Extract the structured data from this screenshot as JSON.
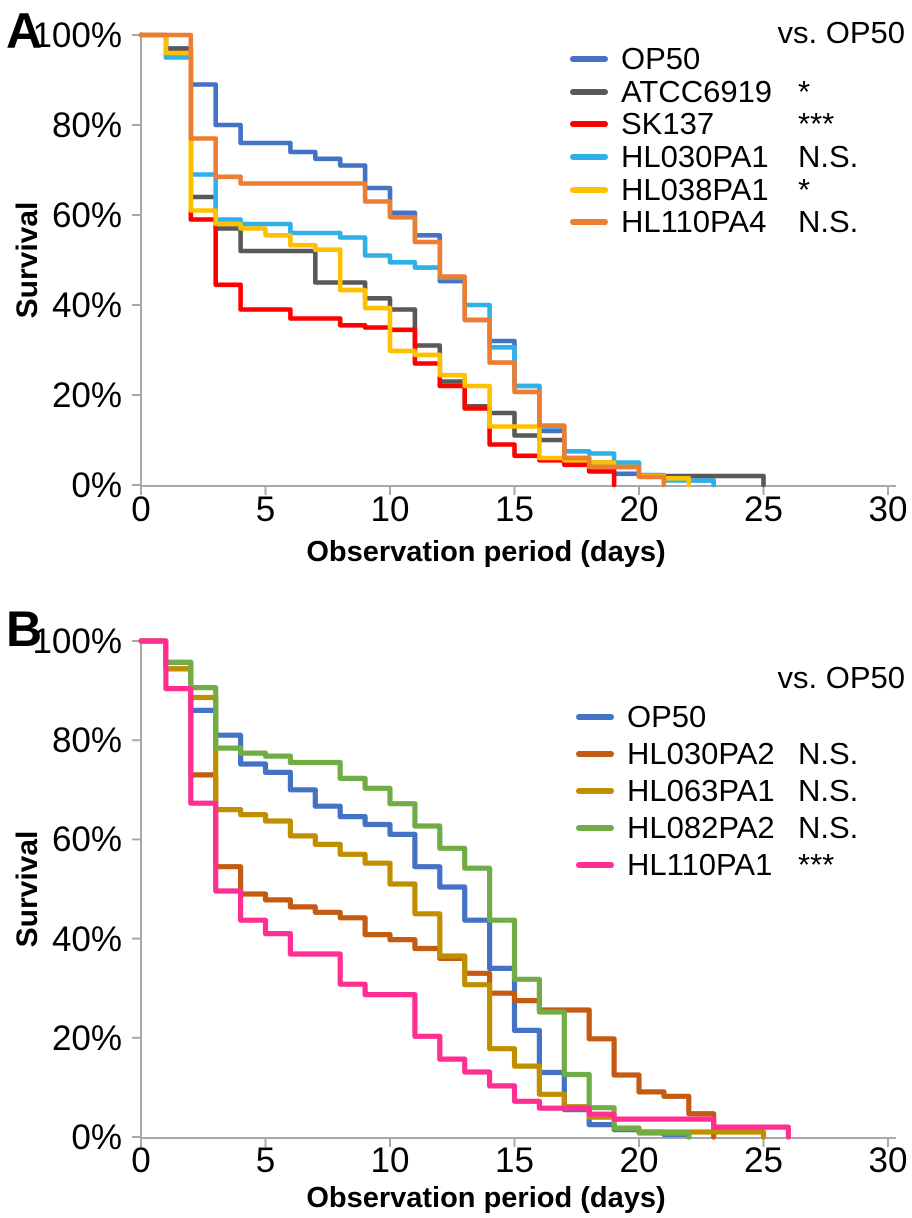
{
  "chart_data": [
    {
      "type": "line",
      "subtype": "kaplan-meier-step-survival",
      "panel_label": "A",
      "comparison_header": "vs. OP50",
      "xlabel": "Observation period (days)",
      "ylabel": "Survival",
      "x_ticks": [
        0,
        5,
        10,
        15,
        20,
        25,
        30
      ],
      "y_tick_labels": [
        "0%",
        "20%",
        "40%",
        "60%",
        "80%",
        "100%"
      ],
      "xlim": [
        0,
        30
      ],
      "ylim": [
        0,
        100
      ],
      "grid": "off",
      "legend_position": "upper-right",
      "axis_color": "#A8A8A8",
      "series": [
        {
          "name": "OP50",
          "color": "#4472C4",
          "significance": "",
          "points": [
            [
              0,
              100
            ],
            [
              1,
              97
            ],
            [
              2,
              89
            ],
            [
              3,
              80
            ],
            [
              4,
              76
            ],
            [
              6,
              74
            ],
            [
              7,
              72.5
            ],
            [
              8,
              71
            ],
            [
              9,
              66
            ],
            [
              10,
              60.5
            ],
            [
              11,
              55.5
            ],
            [
              12,
              45.3
            ],
            [
              13,
              36.7
            ],
            [
              14,
              32
            ],
            [
              15,
              22
            ],
            [
              16,
              12
            ],
            [
              17,
              5.5
            ],
            [
              18,
              4
            ],
            [
              19,
              2.5
            ],
            [
              20,
              2
            ],
            [
              21,
              1.5
            ],
            [
              22,
              1
            ],
            [
              23,
              0
            ]
          ]
        },
        {
          "name": "ATCC6919",
          "color": "#595959",
          "significance": "*",
          "points": [
            [
              0,
              100
            ],
            [
              1,
              97
            ],
            [
              2,
              64
            ],
            [
              3,
              57
            ],
            [
              4,
              52
            ],
            [
              7,
              45
            ],
            [
              9,
              41.5
            ],
            [
              10,
              39
            ],
            [
              11,
              31
            ],
            [
              12,
              23
            ],
            [
              13,
              17.5
            ],
            [
              14,
              16
            ],
            [
              15,
              11
            ],
            [
              16,
              10
            ],
            [
              17,
              6
            ],
            [
              18,
              5
            ],
            [
              19,
              4
            ],
            [
              20,
              2
            ],
            [
              25,
              0
            ]
          ]
        },
        {
          "name": "SK137",
          "color": "#FF0000",
          "significance": "***",
          "points": [
            [
              0,
              100
            ],
            [
              1,
              96
            ],
            [
              2,
              59
            ],
            [
              3,
              44.5
            ],
            [
              4,
              39
            ],
            [
              6,
              37
            ],
            [
              8,
              35.5
            ],
            [
              9,
              35
            ],
            [
              10,
              34.5
            ],
            [
              11,
              27
            ],
            [
              12,
              22
            ],
            [
              13,
              17
            ],
            [
              14,
              9
            ],
            [
              15,
              6.5
            ],
            [
              16,
              5.5
            ],
            [
              17,
              4.5
            ],
            [
              18,
              3
            ],
            [
              19,
              0
            ]
          ]
        },
        {
          "name": "HL030PA1",
          "color": "#2FB0E8",
          "significance": "N.S.",
          "points": [
            [
              0,
              100
            ],
            [
              1,
              95
            ],
            [
              2,
              69
            ],
            [
              3,
              59
            ],
            [
              4,
              58
            ],
            [
              6,
              56
            ],
            [
              8,
              55
            ],
            [
              9,
              51
            ],
            [
              10,
              49.5
            ],
            [
              11,
              48.3
            ],
            [
              12,
              46
            ],
            [
              13,
              40
            ],
            [
              14,
              30.6
            ],
            [
              15,
              22
            ],
            [
              16,
              13
            ],
            [
              17,
              7.5
            ],
            [
              18,
              7
            ],
            [
              19,
              5
            ],
            [
              20,
              2.2
            ],
            [
              21,
              1
            ],
            [
              23,
              0
            ]
          ]
        },
        {
          "name": "HL038PA1",
          "color": "#FFC000",
          "significance": "*",
          "points": [
            [
              0,
              100
            ],
            [
              1,
              96
            ],
            [
              2,
              61
            ],
            [
              3,
              58
            ],
            [
              4,
              57
            ],
            [
              5,
              55.5
            ],
            [
              6,
              53.3
            ],
            [
              7,
              52.3
            ],
            [
              8,
              43.3
            ],
            [
              9,
              39.3
            ],
            [
              10,
              29.8
            ],
            [
              11,
              28.9
            ],
            [
              12,
              24.4
            ],
            [
              13,
              22
            ],
            [
              14,
              13
            ],
            [
              16,
              6
            ],
            [
              17,
              5.5
            ],
            [
              18,
              5
            ],
            [
              19,
              4
            ],
            [
              20,
              2
            ],
            [
              21,
              1.5
            ],
            [
              22,
              0
            ]
          ]
        },
        {
          "name": "HL110PA4",
          "color": "#ED7D31",
          "significance": "N.S.",
          "points": [
            [
              0,
              100
            ],
            [
              2,
              77
            ],
            [
              3,
              68.5
            ],
            [
              4,
              67
            ],
            [
              9,
              63
            ],
            [
              10,
              59.5
            ],
            [
              11,
              54
            ],
            [
              12,
              46.3
            ],
            [
              13,
              36.7
            ],
            [
              14,
              27.2
            ],
            [
              15,
              20.7
            ],
            [
              16,
              13.2
            ],
            [
              17,
              6
            ],
            [
              18,
              4
            ],
            [
              20,
              1.8
            ],
            [
              21,
              0
            ]
          ]
        }
      ]
    },
    {
      "type": "line",
      "subtype": "kaplan-meier-step-survival",
      "panel_label": "B",
      "comparison_header": "vs. OP50",
      "xlabel": "Observation period (days)",
      "ylabel": "Survival",
      "x_ticks": [
        0,
        5,
        10,
        15,
        20,
        25,
        30
      ],
      "y_tick_labels": [
        "0%",
        "20%",
        "40%",
        "60%",
        "80%",
        "100%"
      ],
      "xlim": [
        0,
        30
      ],
      "ylim": [
        0,
        100
      ],
      "grid": "off",
      "legend_position": "upper-right",
      "axis_color": "#A8A8A8",
      "series": [
        {
          "name": "OP50",
          "color": "#4472C4",
          "significance": "",
          "points": [
            [
              0,
              100
            ],
            [
              1,
              95.7
            ],
            [
              2,
              86
            ],
            [
              3,
              81
            ],
            [
              4,
              75.2
            ],
            [
              5,
              73.5
            ],
            [
              6,
              70
            ],
            [
              7,
              66.7
            ],
            [
              8,
              64.6
            ],
            [
              9,
              63
            ],
            [
              10,
              61
            ],
            [
              11,
              54.5
            ],
            [
              12,
              50.4
            ],
            [
              13,
              43.7
            ],
            [
              14,
              34
            ],
            [
              15,
              21.5
            ],
            [
              16,
              13
            ],
            [
              17,
              5.5
            ],
            [
              18,
              2.5
            ],
            [
              19,
              1.5
            ],
            [
              20,
              1
            ],
            [
              21,
              0.5
            ],
            [
              22,
              0
            ]
          ]
        },
        {
          "name": "HL030PA2",
          "color": "#C55A11",
          "significance": "N.S.",
          "points": [
            [
              0,
              100
            ],
            [
              1,
              94.4
            ],
            [
              2,
              73
            ],
            [
              3,
              54.5
            ],
            [
              4,
              49
            ],
            [
              5,
              47.8
            ],
            [
              6,
              46.4
            ],
            [
              7,
              45.3
            ],
            [
              8,
              44.2
            ],
            [
              9,
              40.8
            ],
            [
              10,
              39.8
            ],
            [
              11,
              38
            ],
            [
              12,
              36
            ],
            [
              13,
              33
            ],
            [
              14,
              29
            ],
            [
              15,
              27.5
            ],
            [
              16,
              25.6
            ],
            [
              18,
              19.8
            ],
            [
              19,
              12.5
            ],
            [
              20,
              9.1
            ],
            [
              21,
              8.2
            ],
            [
              22,
              4.7
            ],
            [
              23,
              0
            ]
          ]
        },
        {
          "name": "HL063PA1",
          "color": "#BF8F00",
          "significance": "N.S.",
          "points": [
            [
              0,
              100
            ],
            [
              1,
              94.4
            ],
            [
              2,
              88.6
            ],
            [
              3,
              66
            ],
            [
              4,
              65
            ],
            [
              5,
              63.7
            ],
            [
              6,
              60.7
            ],
            [
              7,
              59
            ],
            [
              8,
              57
            ],
            [
              9,
              55.2
            ],
            [
              10,
              51
            ],
            [
              11,
              45
            ],
            [
              12,
              36.5
            ],
            [
              13,
              30.7
            ],
            [
              14,
              17.8
            ],
            [
              15,
              14.3
            ],
            [
              16,
              8.6
            ],
            [
              17,
              6.1
            ],
            [
              18,
              4
            ],
            [
              19,
              1.8
            ],
            [
              20,
              1
            ],
            [
              25,
              0
            ]
          ]
        },
        {
          "name": "HL082PA2",
          "color": "#70AD47",
          "significance": "N.S.",
          "points": [
            [
              0,
              100
            ],
            [
              1,
              95.7
            ],
            [
              2,
              90.6
            ],
            [
              3,
              78.4
            ],
            [
              4,
              77.4
            ],
            [
              5,
              76.8
            ],
            [
              6,
              75.5
            ],
            [
              8,
              72.3
            ],
            [
              9,
              70.3
            ],
            [
              10,
              67.2
            ],
            [
              11,
              62.7
            ],
            [
              12,
              58.2
            ],
            [
              13,
              54.2
            ],
            [
              14,
              43.7
            ],
            [
              15,
              31.8
            ],
            [
              16,
              25.2
            ],
            [
              17,
              12.6
            ],
            [
              18,
              5.9
            ],
            [
              19,
              1.8
            ],
            [
              20,
              0.8
            ],
            [
              22,
              0
            ]
          ]
        },
        {
          "name": "HL110PA1",
          "color": "#FF2E92",
          "significance": "***",
          "points": [
            [
              0,
              100
            ],
            [
              1,
              90.4
            ],
            [
              2,
              67.3
            ],
            [
              3,
              49.6
            ],
            [
              4,
              43.7
            ],
            [
              5,
              41
            ],
            [
              6,
              36.9
            ],
            [
              8,
              30.8
            ],
            [
              9,
              28.7
            ],
            [
              11,
              20.3
            ],
            [
              12,
              15.7
            ],
            [
              13,
              13.1
            ],
            [
              14,
              10.3
            ],
            [
              15,
              7.2
            ],
            [
              16,
              5.8
            ],
            [
              18,
              4.6
            ],
            [
              19,
              3.6
            ],
            [
              23,
              2
            ],
            [
              26,
              0
            ]
          ]
        }
      ]
    }
  ]
}
